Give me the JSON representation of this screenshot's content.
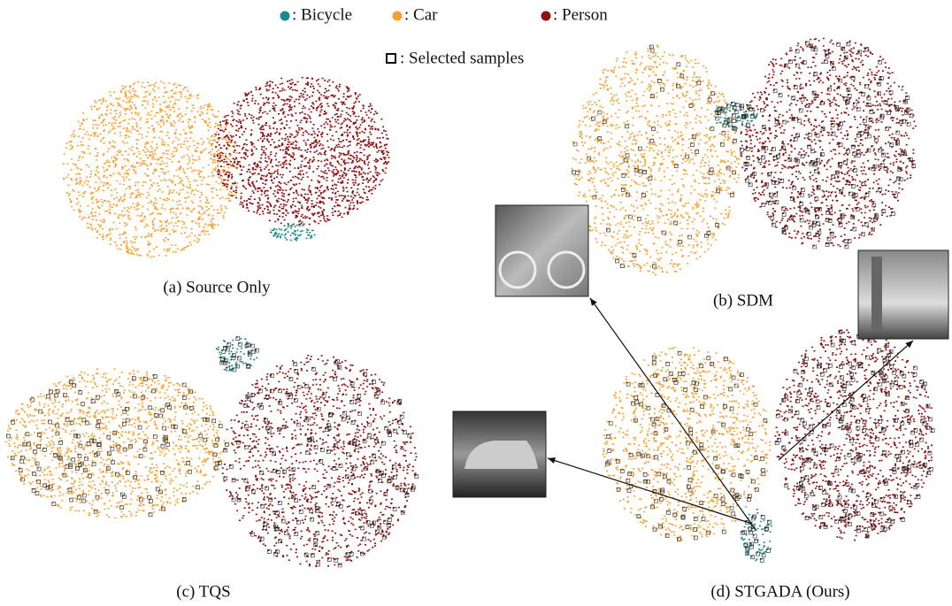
{
  "legend": {
    "items": [
      ": Bicycle",
      ": Car",
      ": Person"
    ],
    "selected": ": Selected samples"
  },
  "panels": [
    {
      "caption": "(a) Source Only"
    },
    {
      "caption": "(b) SDM"
    },
    {
      "caption": "(c) TQS"
    },
    {
      "caption": "(d) STGADA (Ours)"
    }
  ]
}
